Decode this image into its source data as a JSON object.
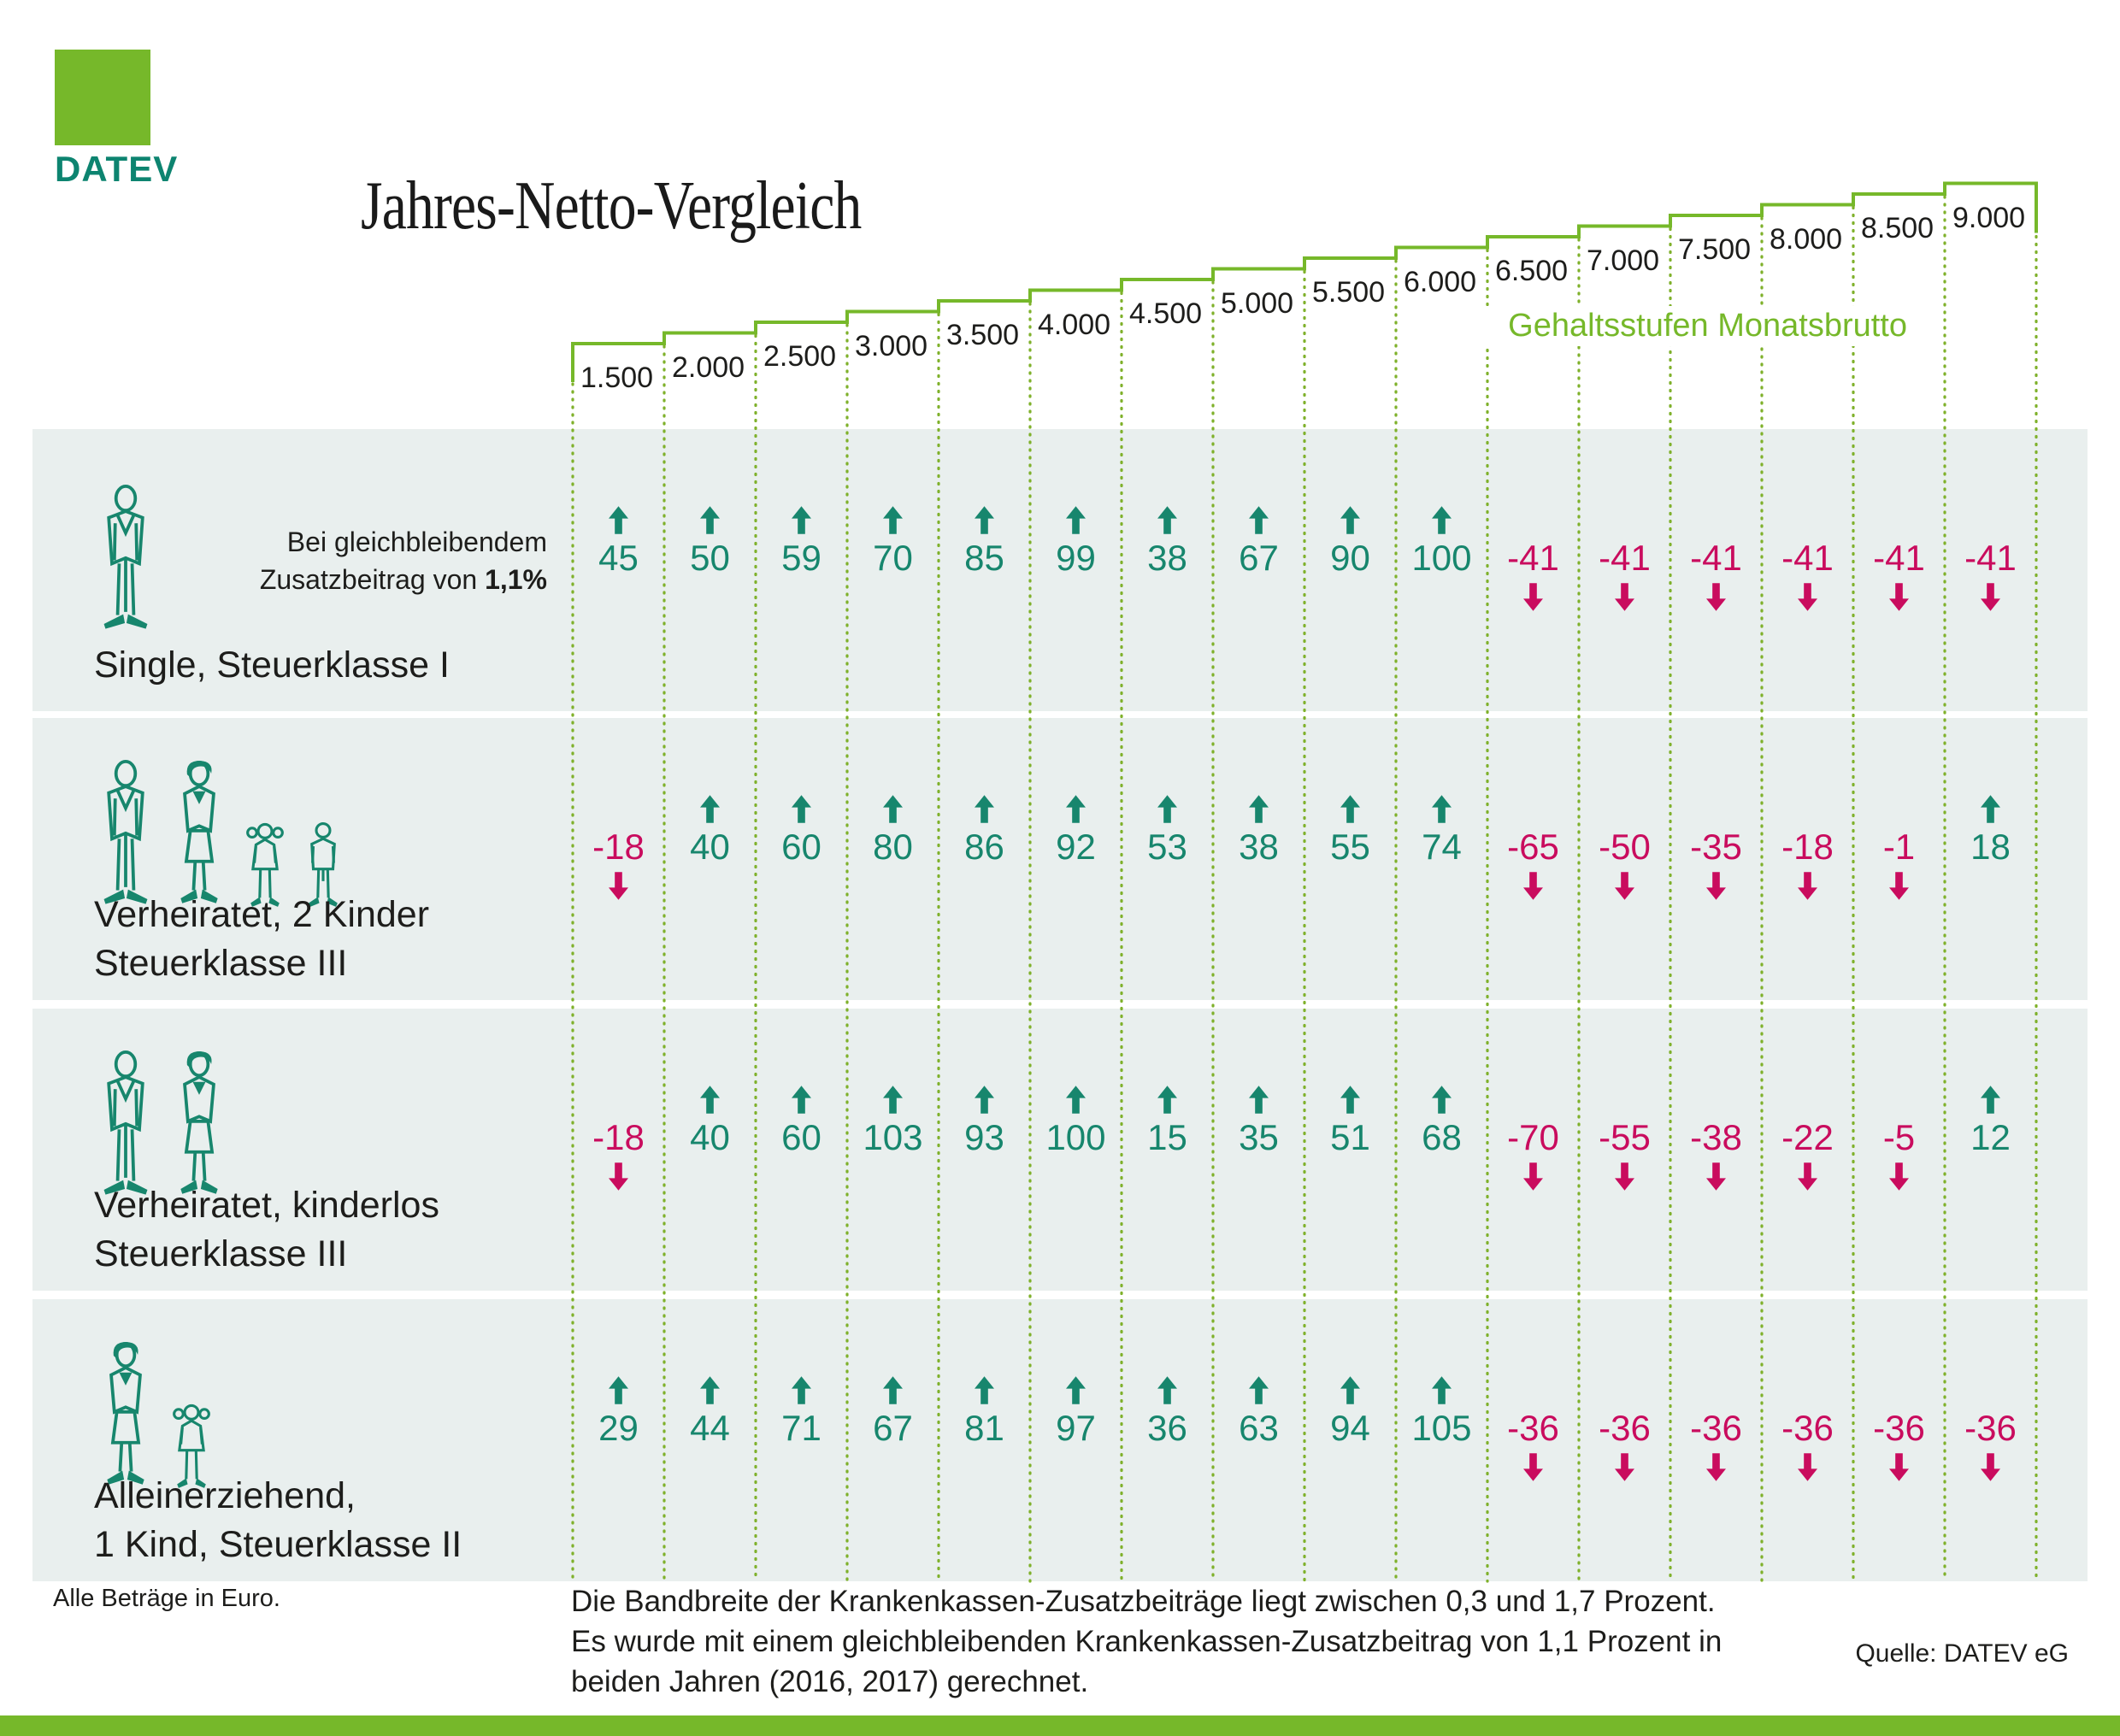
{
  "logo": {
    "text": "DATEV"
  },
  "header": {
    "title": "Jahres-Netto-Vergleich",
    "axis_label": "Gehaltsstufen Monatsbrutto",
    "salary_steps": [
      "1.500",
      "2.000",
      "2.500",
      "3.000",
      "3.500",
      "4.000",
      "4.500",
      "5.000",
      "5.500",
      "6.000",
      "6.500",
      "7.000",
      "7.500",
      "8.000",
      "8.500",
      "9.000"
    ]
  },
  "rows": [
    {
      "label_lines": [
        "Single, Steuerklasse I"
      ],
      "icons": [
        "man"
      ],
      "note": {
        "line1": "Bei gleichbleibendem",
        "line2_prefix": "Zusatzbeitrag von ",
        "line2_bold": "1,1%"
      },
      "values": [
        45,
        50,
        59,
        70,
        85,
        99,
        38,
        67,
        90,
        100,
        -41,
        -41,
        -41,
        -41,
        -41,
        -41
      ]
    },
    {
      "label_lines": [
        "Verheiratet, 2 Kinder",
        "Steuerklasse III"
      ],
      "icons": [
        "man",
        "woman",
        "girl",
        "boy"
      ],
      "values": [
        -18,
        40,
        60,
        80,
        86,
        92,
        53,
        38,
        55,
        74,
        -65,
        -50,
        -35,
        -18,
        -1,
        18
      ]
    },
    {
      "label_lines": [
        "Verheiratet, kinderlos",
        "Steuerklasse III"
      ],
      "icons": [
        "man",
        "woman"
      ],
      "values": [
        -18,
        40,
        60,
        103,
        93,
        100,
        15,
        35,
        51,
        68,
        -70,
        -55,
        -38,
        -22,
        -5,
        12
      ]
    },
    {
      "label_lines": [
        "Alleinerziehend,",
        "1 Kind, Steuerklasse II"
      ],
      "icons": [
        "woman",
        "girl"
      ],
      "values": [
        29,
        44,
        71,
        67,
        81,
        97,
        36,
        63,
        94,
        105,
        -36,
        -36,
        -36,
        -36,
        -36,
        -36
      ]
    }
  ],
  "footer": {
    "left_note": "Alle Beträge in Euro.",
    "explanation": [
      "Die Bandbreite der Krankenkassen-Zusatzbeiträge liegt zwischen 0,3 und 1,7 Prozent.",
      "Es wurde mit einem gleichbleibenden Krankenkassen-Zusatzbeitrag von 1,1 Prozent in",
      "beiden Jahren (2016, 2017) gerechnet."
    ],
    "source": "Quelle: DATEV eG"
  },
  "colors": {
    "green": "#76b82a",
    "dotted_green": "#7fb12b",
    "teal": "#17866d",
    "red": "#c90c5e",
    "band_bg": "#e9efee",
    "text": "#1d1d1b"
  },
  "chart_data": {
    "type": "table",
    "title": "Jahres-Netto-Vergleich",
    "unit": "Euro",
    "xlabel": "Gehaltsstufen Monatsbrutto",
    "categories": [
      1500,
      2000,
      2500,
      3000,
      3500,
      4000,
      4500,
      5000,
      5500,
      6000,
      6500,
      7000,
      7500,
      8000,
      8500,
      9000
    ],
    "series": [
      {
        "name": "Single, Steuerklasse I",
        "values": [
          45,
          50,
          59,
          70,
          85,
          99,
          38,
          67,
          90,
          100,
          -41,
          -41,
          -41,
          -41,
          -41,
          -41
        ]
      },
      {
        "name": "Verheiratet, 2 Kinder, Steuerklasse III",
        "values": [
          -18,
          40,
          60,
          80,
          86,
          92,
          53,
          38,
          55,
          74,
          -65,
          -50,
          -35,
          -18,
          -1,
          18
        ]
      },
      {
        "name": "Verheiratet, kinderlos, Steuerklasse III",
        "values": [
          -18,
          40,
          60,
          103,
          93,
          100,
          15,
          35,
          51,
          68,
          -70,
          -55,
          -38,
          -22,
          -5,
          12
        ]
      },
      {
        "name": "Alleinerziehend, 1 Kind, Steuerklasse II",
        "values": [
          29,
          44,
          71,
          67,
          81,
          97,
          36,
          63,
          94,
          105,
          -36,
          -36,
          -36,
          -36,
          -36,
          -36
        ]
      }
    ],
    "legend_note": "Positive Werte: Pfeil nach oben (grün). Negative Werte: Pfeil nach unten (rot).",
    "assumption": "Bei gleichbleibendem Zusatzbeitrag von 1,1%"
  }
}
